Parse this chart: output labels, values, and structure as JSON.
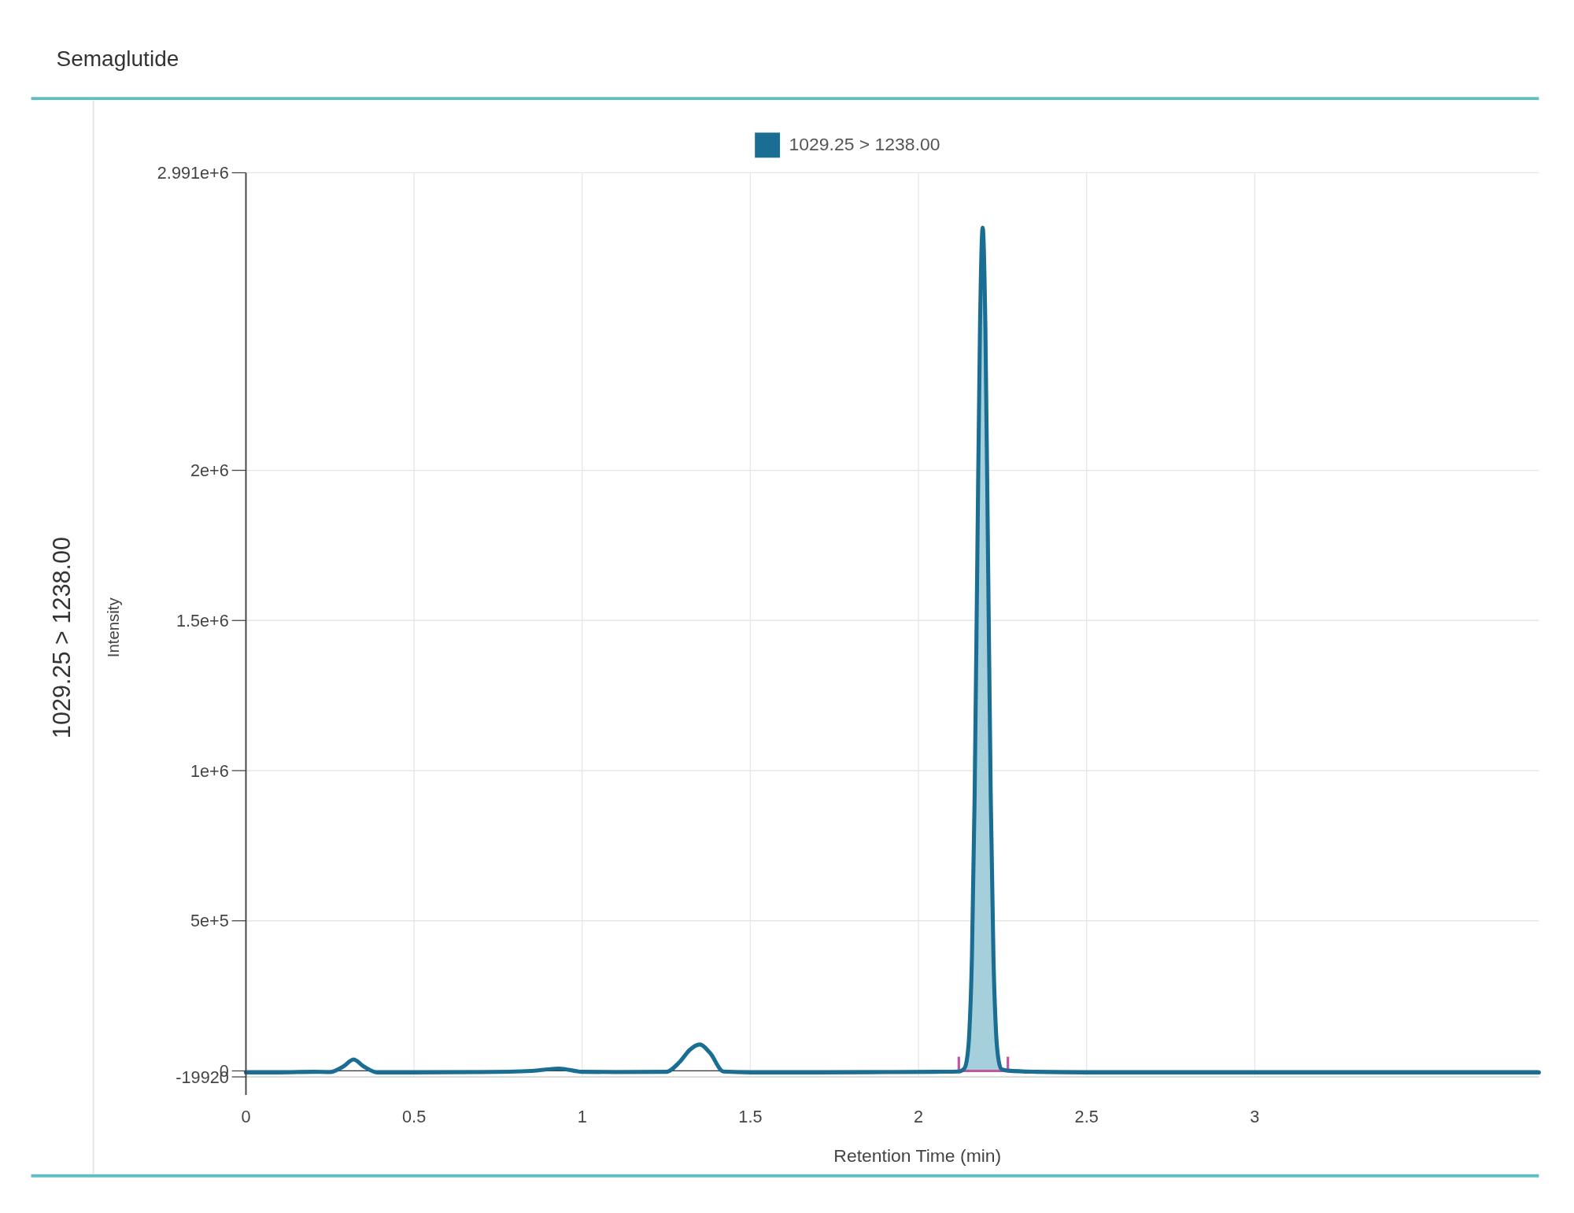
{
  "chart_data": {
    "type": "line",
    "title": "Semaglutide",
    "xlabel": "Retention Time (min)",
    "ylabel": "Intensity",
    "annotations": [
      "1029.25 > 1238.00"
    ],
    "xlim": [
      0,
      3.845
    ],
    "xticks": [
      0,
      0.5,
      1,
      1.5,
      2,
      2.5,
      3
    ],
    "ylim": [
      -19920,
      2991000
    ],
    "yticks": [
      {
        "value": -19920,
        "label": "-19920"
      },
      0,
      {
        "value": 500000,
        "label": "5e+5"
      },
      {
        "value": 1000000,
        "label": "1e+6"
      },
      {
        "value": 1500000,
        "label": "1.5e+6"
      },
      {
        "value": 2000000,
        "label": "2e+6"
      },
      {
        "value": 2991000,
        "label": "2.991e+6"
      }
    ],
    "grid": true,
    "legend": "top",
    "marker": "none",
    "line_style": "solid",
    "series": [
      {
        "name": "1029.25 > 1238.00",
        "color": "#1a6e94",
        "x": [
          0,
          0.1,
          0.2,
          0.25,
          0.29,
          0.32,
          0.35,
          0.39,
          0.5,
          0.7,
          0.85,
          0.93,
          1.0,
          1.1,
          1.25,
          1.29,
          1.32,
          1.35,
          1.38,
          1.42,
          1.5,
          1.7,
          1.9,
          2.05,
          2.12,
          2.135,
          2.143,
          2.151,
          2.159,
          2.167,
          2.175,
          2.183,
          2.191,
          2.199,
          2.207,
          2.215,
          2.223,
          2.231,
          2.239,
          2.247,
          2.266,
          2.35,
          2.5,
          2.7,
          3.0,
          3.3,
          3.6,
          3.845
        ],
        "values": [
          -5000,
          -5000,
          -3000,
          -4000,
          15000,
          38000,
          15000,
          -5000,
          -5000,
          -4000,
          0,
          8000,
          -3000,
          -4000,
          -3000,
          30000,
          70000,
          88000,
          60000,
          -2000,
          -5000,
          -5000,
          -4000,
          -3000,
          -2000,
          6000,
          31000,
          123000,
          380000,
          912000,
          1703000,
          2478000,
          2808000,
          2478000,
          1703000,
          912000,
          380000,
          123000,
          31000,
          6000,
          1000,
          -3000,
          -5000,
          -5000,
          -5000,
          -5000,
          -5000,
          -5000
        ]
      },
      {
        "color": "#a6cfdc",
        "type": "area",
        "x": [
          2.12,
          2.135,
          2.143,
          2.151,
          2.159,
          2.167,
          2.175,
          2.183,
          2.191,
          2.199,
          2.207,
          2.215,
          2.223,
          2.231,
          2.239,
          2.247,
          2.266
        ],
        "values": [
          -2000,
          6000,
          31000,
          123000,
          380000,
          912000,
          1703000,
          2478000,
          2808000,
          2478000,
          1703000,
          912000,
          380000,
          123000,
          31000,
          6000,
          1000
        ]
      }
    ]
  }
}
